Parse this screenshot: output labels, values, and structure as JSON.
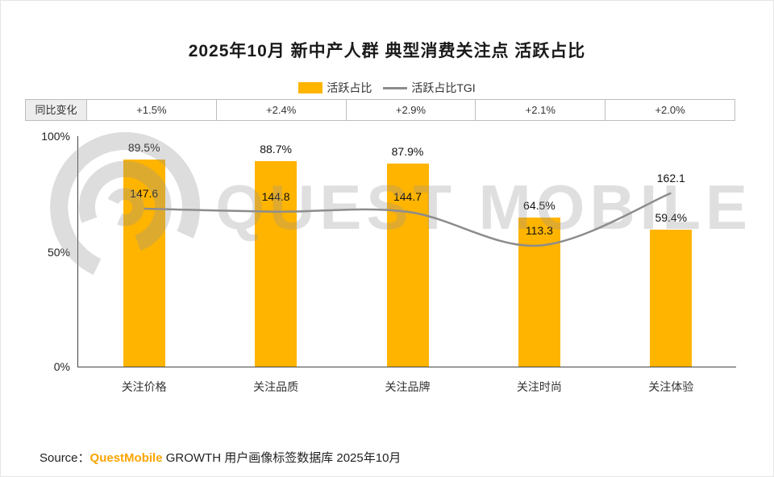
{
  "title": "2025年10月 新中产人群 典型消费关注点 活跃占比",
  "legend": {
    "bar_label": "活跃占比",
    "line_label": "活跃占比TGI"
  },
  "change_row": {
    "header": "同比变化",
    "values": [
      "+1.5%",
      "+2.4%",
      "+2.9%",
      "+2.1%",
      "+2.0%"
    ]
  },
  "chart_data": {
    "type": "bar",
    "categories": [
      "关注价格",
      "关注品质",
      "关注品牌",
      "关注时尚",
      "关注体验"
    ],
    "series": [
      {
        "name": "活跃占比",
        "type": "bar",
        "unit": "%",
        "values": [
          89.5,
          88.7,
          87.9,
          64.5,
          59.4
        ]
      },
      {
        "name": "活跃占比TGI",
        "type": "line",
        "values": [
          147.6,
          144.8,
          144.7,
          113.3,
          162.1
        ]
      }
    ],
    "title": "2025年10月 新中产人群 典型消费关注点 活跃占比",
    "xlabel": "",
    "ylabel": "",
    "ylim": [
      0,
      100
    ],
    "yticks": [
      "100%",
      "50%",
      "0%"
    ],
    "y2lim": [
      0,
      215
    ],
    "grid": false,
    "legend_position": "top",
    "colors": {
      "bar": "#FFB400",
      "line": "#8C8C8C"
    }
  },
  "watermark": {
    "text": "QUEST MOBILE"
  },
  "source": {
    "prefix": "Source：",
    "brand": "QuestMobile",
    "rest": " GROWTH 用户画像标签数据库 2025年10月"
  }
}
